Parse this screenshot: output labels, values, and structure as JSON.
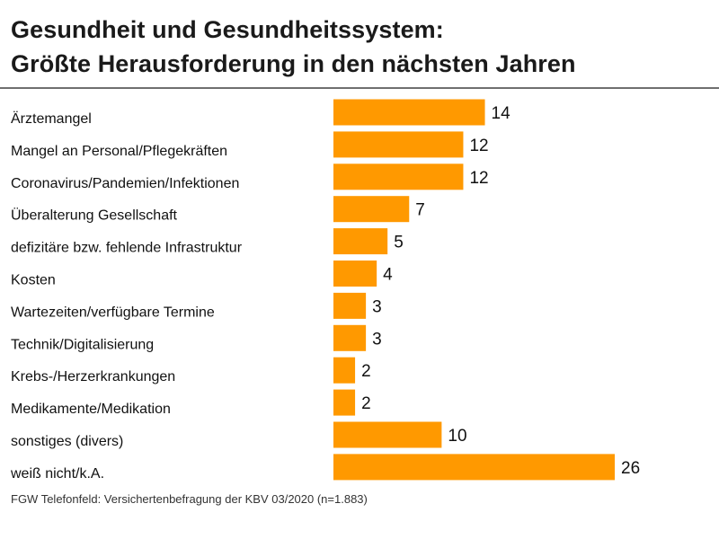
{
  "chart_data": {
    "type": "bar",
    "orientation": "horizontal",
    "title": "Gesundheit und Gesundheitssystem:",
    "subtitle": "Größte Herausforderung in den nächsten Jahren",
    "categories": [
      "Ärztemangel",
      "Mangel an Personal/Pflegekräften",
      "Coronavirus/Pandemien/Infektionen",
      "Überalterung Gesellschaft",
      "defizitäre bzw. fehlende Infrastruktur",
      "Kosten",
      "Wartezeiten/verfügbare Termine",
      "Technik/Digitalisierung",
      "Krebs-/Herzerkrankungen",
      "Medikamente/Medikation",
      "sonstiges (divers)",
      "weiß nicht/k.A."
    ],
    "values": [
      14,
      12,
      12,
      7,
      5,
      4,
      3,
      3,
      2,
      2,
      10,
      26
    ],
    "xlim": [
      0,
      26
    ],
    "grid": false,
    "data_labels": true,
    "bar_color": "#FF9900",
    "source": "FGW Telefonfeld: Versichertenbefragung der KBV 03/2020 (n=1.883)"
  }
}
